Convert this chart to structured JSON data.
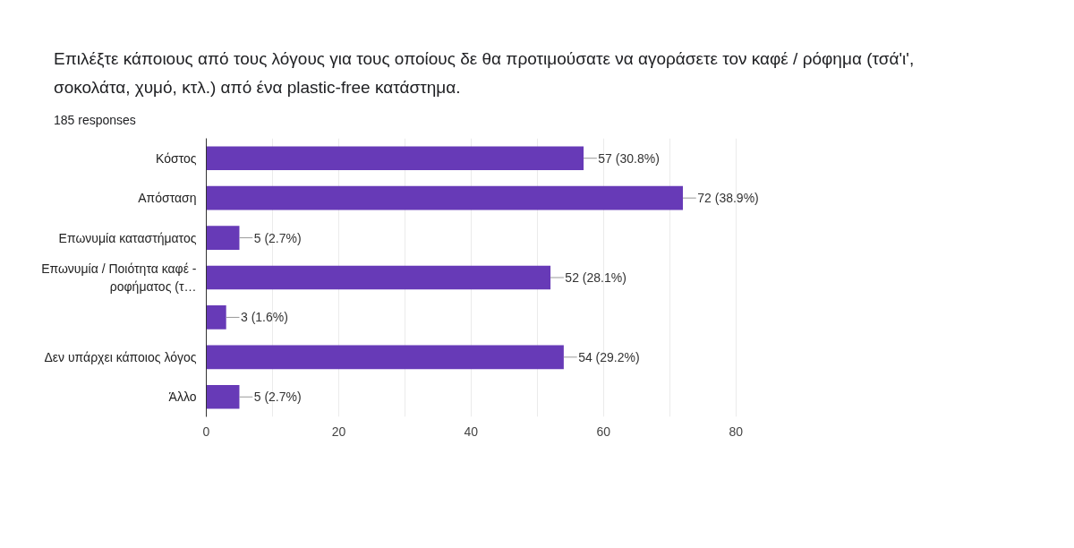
{
  "chart_data": {
    "type": "bar",
    "orientation": "horizontal",
    "title": "Επιλέξτε κάποιους από τους λόγους για τους οποίους δε θα προτιμούσατε να αγοράσετε τον καφέ / ρόφημα (τσά'ι', σοκολάτα, χυμό, κτλ.) από ένα plastic-free κατάστημα.",
    "subtitle": "185 responses",
    "categories": [
      "Κόστος",
      "Απόσταση",
      "Επωνυμία καταστήματος",
      "Επωνυμία / Ποιότητα καφέ - ροφήματος (τ…",
      null,
      "Δεν υπάρχει κάποιος λόγος",
      "Άλλο"
    ],
    "values": [
      57,
      72,
      5,
      52,
      3,
      54,
      5
    ],
    "value_labels": [
      "57 (30.8%)",
      "72 (38.9%)",
      "5 (2.7%)",
      "52 (28.1%)",
      "3 (1.6%)",
      "54 (29.2%)",
      "5 (2.7%)"
    ],
    "color": "#673ab7",
    "xlim": [
      0,
      80
    ],
    "xticks": [
      0,
      {
        "value": 10,
        "label": null
      },
      20,
      {
        "value": 30,
        "label": null
      },
      40,
      {
        "value": 50,
        "label": null
      },
      60,
      {
        "value": 70,
        "label": null
      },
      80
    ],
    "grid": "x"
  }
}
